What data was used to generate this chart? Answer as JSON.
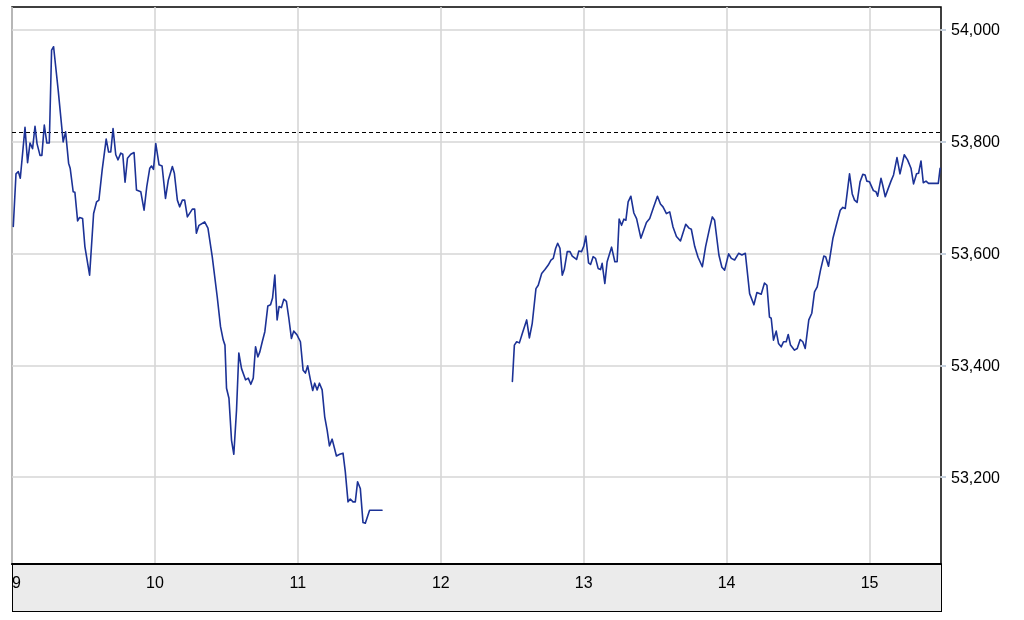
{
  "chart_data": {
    "type": "line",
    "x": [
      9.009,
      9.028,
      9.044,
      9.058,
      9.091,
      9.109,
      9.126,
      9.144,
      9.161,
      9.175,
      9.196,
      9.209,
      9.226,
      9.244,
      9.261,
      9.277,
      9.291,
      9.323,
      9.358,
      9.375,
      9.396,
      9.407,
      9.428,
      9.44,
      9.459,
      9.473,
      9.494,
      9.51,
      9.543,
      9.571,
      9.592,
      9.608,
      9.631,
      9.659,
      9.676,
      9.691,
      9.707,
      9.726,
      9.742,
      9.761,
      9.775,
      9.791,
      9.808,
      9.831,
      9.854,
      9.871,
      9.901,
      9.924,
      9.943,
      9.964,
      9.976,
      9.99,
      10.006,
      10.029,
      10.05,
      10.074,
      10.094,
      10.122,
      10.136,
      10.157,
      10.173,
      10.192,
      10.208,
      10.227,
      10.262,
      10.278,
      10.29,
      10.308,
      10.348,
      10.371,
      10.401,
      10.436,
      10.459,
      10.478,
      10.49,
      10.501,
      10.518,
      10.536,
      10.552,
      10.571,
      10.587,
      10.606,
      10.634,
      10.653,
      10.671,
      10.688,
      10.704,
      10.72,
      10.734,
      10.751,
      10.769,
      10.79,
      10.809,
      10.823,
      10.839,
      10.855,
      10.869,
      10.885,
      10.902,
      10.92,
      10.937,
      10.955,
      10.971,
      10.995,
      11.018,
      11.037,
      11.053,
      11.069,
      11.088,
      11.104,
      11.118,
      11.135,
      11.151,
      11.17,
      11.188,
      11.205,
      11.221,
      11.24,
      11.27,
      11.293,
      11.316,
      11.332,
      11.351,
      11.367,
      11.386,
      11.402,
      11.418,
      11.437,
      11.456,
      11.472,
      11.502,
      11.589,
      12,
      12.501,
      12.515,
      12.531,
      12.55,
      12.571,
      12.601,
      12.62,
      12.64,
      12.666,
      12.682,
      12.706,
      12.729,
      12.752,
      12.771,
      12.787,
      12.804,
      12.818,
      12.834,
      12.85,
      12.864,
      12.885,
      12.904,
      12.92,
      12.95,
      12.966,
      12.985,
      13.001,
      13.015,
      13.034,
      13.048,
      13.066,
      13.083,
      13.101,
      13.118,
      13.129,
      13.148,
      13.164,
      13.195,
      13.218,
      13.234,
      13.248,
      13.265,
      13.281,
      13.295,
      13.311,
      13.33,
      13.351,
      13.37,
      13.4,
      13.421,
      13.439,
      13.462,
      13.49,
      13.516,
      13.537,
      13.555,
      13.579,
      13.602,
      13.625,
      13.649,
      13.677,
      13.714,
      13.737,
      13.753,
      13.777,
      13.8,
      13.83,
      13.853,
      13.881,
      13.9,
      13.916,
      13.946,
      13.967,
      13.986,
      14.014,
      14.033,
      14.056,
      14.084,
      14.107,
      14.131,
      14.161,
      14.191,
      14.212,
      14.242,
      14.265,
      14.282,
      14.3,
      14.312,
      14.328,
      14.347,
      14.363,
      14.382,
      14.398,
      14.417,
      14.431,
      14.447,
      14.475,
      14.494,
      14.515,
      14.533,
      14.55,
      14.575,
      14.596,
      14.615,
      14.634,
      14.657,
      14.68,
      14.693,
      14.713,
      14.744,
      14.767,
      14.795,
      14.813,
      14.83,
      14.86,
      14.879,
      14.895,
      14.913,
      14.934,
      14.953,
      14.969,
      14.981,
      14.999,
      15.027,
      15.045,
      15.057,
      15.08,
      15.092,
      15.11,
      15.131,
      15.15,
      15.168,
      15.192,
      15.213,
      15.243,
      15.266,
      15.29,
      15.308,
      15.329,
      15.343,
      15.36,
      15.376,
      15.395,
      15.413,
      15.481,
      15.494
    ],
    "series": [
      {
        "color": "#1c3296",
        "values": [
          53648,
          53742,
          53746,
          53734,
          53825,
          53762,
          53797,
          53787,
          53827,
          53796,
          53775,
          53775,
          53829,
          53797,
          53797,
          53963,
          53969,
          53892,
          53799,
          53817,
          53761,
          53752,
          53710,
          53709,
          53658,
          53664,
          53662,
          53612,
          53561,
          53671,
          53692,
          53695,
          53749,
          53804,
          53781,
          53781,
          53823,
          53776,
          53767,
          53779,
          53777,
          53727,
          53770,
          53777,
          53780,
          53713,
          53710,
          53677,
          53719,
          53752,
          53756,
          53750,
          53796,
          53758,
          53756,
          53698,
          53731,
          53755,
          53743,
          53695,
          53683,
          53695,
          53695,
          53665,
          53679,
          53679,
          53636,
          53650,
          53656,
          53645,
          53594,
          53522,
          53469,
          53445,
          53436,
          53359,
          53341,
          53266,
          53241,
          53320,
          53422,
          53394,
          53374,
          53377,
          53366,
          53377,
          53433,
          53415,
          53424,
          53442,
          53460,
          53506,
          53508,
          53520,
          53561,
          53481,
          53505,
          53503,
          53518,
          53514,
          53484,
          53448,
          53461,
          53454,
          53442,
          53391,
          53386,
          53399,
          53374,
          53355,
          53368,
          53356,
          53368,
          53356,
          53308,
          53284,
          53256,
          53268,
          53238,
          53241,
          53243,
          53210,
          53156,
          53161,
          53156,
          53156,
          53192,
          53180,
          53119,
          53118,
          53141,
          53141,
          null,
          53371,
          53436,
          53442,
          53440,
          53457,
          53481,
          53449,
          53475,
          53537,
          53543,
          53564,
          53571,
          53579,
          53588,
          53591,
          53609,
          53618,
          53609,
          53561,
          53571,
          53603,
          53603,
          53595,
          53589,
          53604,
          53603,
          53613,
          53631,
          53583,
          53580,
          53594,
          53591,
          53573,
          53571,
          53582,
          53546,
          53585,
          53611,
          53585,
          53585,
          53661,
          53650,
          53661,
          53659,
          53692,
          53702,
          53672,
          53662,
          53627,
          53642,
          53655,
          53662,
          53683,
          53702,
          53688,
          53683,
          53671,
          53674,
          53647,
          53630,
          53622,
          53652,
          53645,
          53643,
          53612,
          53593,
          53576,
          53612,
          53645,
          53665,
          53659,
          53597,
          53575,
          53570,
          53599,
          53591,
          53588,
          53600,
          53597,
          53600,
          53528,
          53508,
          53530,
          53527,
          53547,
          53543,
          53486,
          53484,
          53445,
          53461,
          53439,
          53433,
          53442,
          53442,
          53455,
          53436,
          53427,
          53430,
          53446,
          53442,
          53430,
          53481,
          53493,
          53531,
          53540,
          53570,
          53595,
          53594,
          53577,
          53627,
          53650,
          53677,
          53682,
          53680,
          53742,
          53706,
          53695,
          53691,
          53728,
          53741,
          53740,
          53729,
          53728,
          53712,
          53710,
          53702,
          53734,
          53722,
          53701,
          53716,
          53729,
          53740,
          53771,
          53742,
          53776,
          53767,
          53752,
          53724,
          53742,
          53743,
          53765,
          53726,
          53729,
          53725,
          53725,
          53752
        ]
      }
    ],
    "xlim": [
      9,
      15.5
    ],
    "xticks": [
      9,
      10,
      11,
      12,
      13,
      14,
      15
    ],
    "ylim": [
      53045,
      54040
    ],
    "yticks": [
      {
        "value": 53200,
        "label": "53,200"
      },
      {
        "value": 53400,
        "label": "53,400"
      },
      {
        "value": 53600,
        "label": "53,600"
      },
      {
        "value": 53800,
        "label": "53,800"
      },
      {
        "value": 54000,
        "label": "54,000"
      }
    ],
    "ref_lines": [
      {
        "axis": "y",
        "value": 53817,
        "color": "#000000",
        "line_style": "dashed"
      }
    ],
    "grid": true,
    "marker": "none",
    "line_style": "solid"
  }
}
